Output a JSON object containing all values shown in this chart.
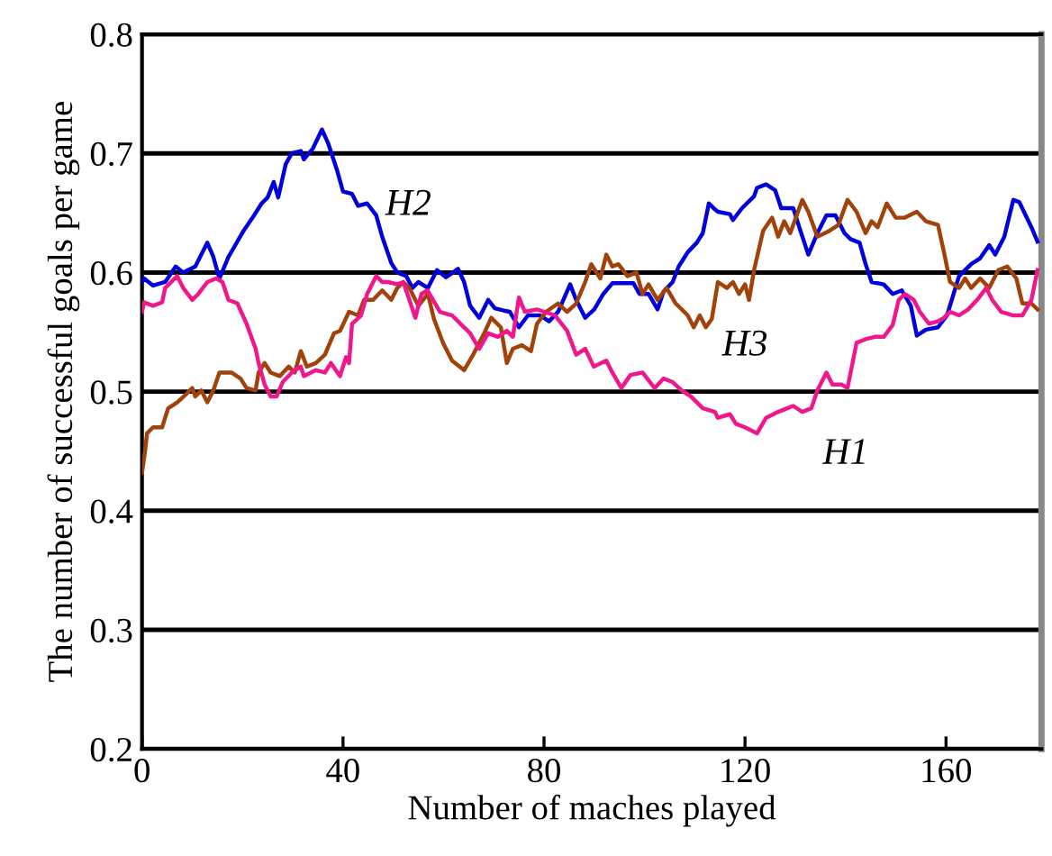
{
  "chart_data": {
    "type": "line",
    "xlabel": "Number of maches played",
    "ylabel": "The number of successful goals per game",
    "xlim": [
      0,
      179
    ],
    "ylim": [
      0.2,
      0.8
    ],
    "xticks": [
      0,
      40,
      80,
      120,
      160
    ],
    "yticks": [
      0.2,
      0.3,
      0.4,
      0.5,
      0.6,
      0.7,
      0.8
    ],
    "grid": "y",
    "legend": false,
    "marker": "none",
    "line_style": "solid",
    "series": [
      {
        "name": "H2",
        "color": "#0000dd",
        "x": [
          0,
          0.4,
          2.2,
          4.6,
          6.7,
          8.2,
          10.6,
          13.0,
          14.2,
          15.4,
          17.2,
          20.2,
          22.0,
          23.8,
          25.0,
          26.2,
          27.1,
          28.6,
          29.8,
          31.6,
          32.2,
          34.0,
          35.8,
          37.0,
          38.8,
          40.0,
          41.8,
          43.0,
          44.8,
          46.6,
          47.8,
          49.6,
          50.8,
          52.6,
          53.8,
          55.0,
          56.9,
          58.7,
          60.5,
          62.9,
          64.1,
          65.3,
          67.1,
          68.9,
          70.2,
          72.0,
          73.2,
          75.0,
          76.8,
          79.2,
          81.0,
          82.8,
          85.2,
          86.4,
          88.2,
          90.0,
          91.8,
          93.6,
          97.8,
          99.0,
          100.8,
          102.6,
          103.8,
          105.6,
          106.8,
          108.6,
          110.4,
          111.6,
          112.8,
          114.0,
          114.6,
          117.0,
          117.6,
          119.4,
          121.8,
          122.4,
          124.2,
          126.0,
          127.2,
          129.6,
          130.8,
          132.6,
          134.4,
          136.2,
          138.0,
          139.8,
          141.0,
          142.8,
          144.0,
          145.2,
          147.6,
          149.4,
          151.2,
          153.0,
          154.2,
          156.0,
          158.4,
          160.2,
          162.6,
          165.0,
          166.8,
          168.6,
          169.8,
          171.6,
          173.4,
          174.6,
          177.0,
          178.2
        ],
        "values": [
          0.592,
          0.595,
          0.589,
          0.592,
          0.605,
          0.6,
          0.605,
          0.625,
          0.613,
          0.595,
          0.613,
          0.635,
          0.646,
          0.658,
          0.663,
          0.676,
          0.663,
          0.691,
          0.7,
          0.702,
          0.695,
          0.704,
          0.72,
          0.709,
          0.686,
          0.668,
          0.666,
          0.656,
          0.658,
          0.648,
          0.63,
          0.608,
          0.6,
          0.597,
          0.587,
          0.592,
          0.587,
          0.602,
          0.596,
          0.603,
          0.592,
          0.572,
          0.562,
          0.577,
          0.57,
          0.568,
          0.567,
          0.554,
          0.564,
          0.564,
          0.559,
          0.567,
          0.59,
          0.577,
          0.562,
          0.569,
          0.582,
          0.591,
          0.591,
          0.582,
          0.582,
          0.569,
          0.584,
          0.592,
          0.605,
          0.617,
          0.625,
          0.633,
          0.658,
          0.653,
          0.651,
          0.649,
          0.644,
          0.654,
          0.664,
          0.671,
          0.674,
          0.669,
          0.654,
          0.654,
          0.638,
          0.615,
          0.633,
          0.648,
          0.648,
          0.633,
          0.628,
          0.625,
          0.607,
          0.592,
          0.59,
          0.582,
          0.585,
          0.572,
          0.547,
          0.552,
          0.554,
          0.564,
          0.597,
          0.607,
          0.612,
          0.623,
          0.615,
          0.63,
          0.661,
          0.659,
          0.638,
          0.626
        ]
      },
      {
        "name": "H3",
        "color": "#a0420a",
        "x": [
          0,
          0.6,
          1.0,
          2.2,
          4.0,
          5.2,
          7.0,
          8.8,
          10.0,
          10.6,
          11.8,
          13.0,
          14.2,
          15.4,
          17.8,
          19.6,
          20.8,
          22.6,
          23.2,
          24.4,
          25.6,
          27.4,
          29.2,
          30.4,
          31.6,
          32.8,
          34.6,
          36.4,
          38.2,
          39.4,
          41.2,
          43.0,
          44.2,
          46.0,
          47.8,
          49.6,
          50.8,
          52.0,
          53.2,
          55.0,
          56.9,
          58.1,
          59.9,
          61.7,
          64.1,
          65.9,
          68.1,
          69.5,
          71.4,
          72.6,
          73.8,
          75.6,
          77.4,
          78.6,
          80.4,
          82.8,
          84.6,
          86.4,
          88.2,
          89.4,
          91.2,
          92.4,
          93.6,
          94.8,
          96.6,
          98.4,
          99.6,
          100.8,
          102.6,
          104.4,
          106.2,
          108.6,
          109.8,
          111.0,
          112.2,
          113.4,
          114.6,
          116.4,
          117.6,
          118.8,
          120.0,
          120.8,
          121.8,
          123.6,
          125.4,
          126.6,
          127.8,
          129.0,
          131.4,
          132.6,
          134.4,
          136.8,
          138.6,
          140.4,
          142.2,
          144.0,
          145.2,
          146.4,
          148.2,
          150.0,
          151.8,
          154.2,
          156.0,
          158.4,
          159.6,
          160.8,
          162.6,
          163.8,
          165.0,
          166.8,
          168.6,
          170.4,
          172.2,
          174.0,
          175.2,
          177.0,
          178.2
        ],
        "values": [
          0.432,
          0.45,
          0.465,
          0.47,
          0.47,
          0.486,
          0.491,
          0.498,
          0.503,
          0.496,
          0.501,
          0.491,
          0.501,
          0.516,
          0.516,
          0.511,
          0.503,
          0.501,
          0.516,
          0.524,
          0.516,
          0.513,
          0.521,
          0.516,
          0.534,
          0.521,
          0.524,
          0.531,
          0.549,
          0.551,
          0.567,
          0.564,
          0.577,
          0.577,
          0.585,
          0.577,
          0.587,
          0.592,
          0.587,
          0.572,
          0.582,
          0.561,
          0.541,
          0.526,
          0.518,
          0.531,
          0.549,
          0.562,
          0.554,
          0.524,
          0.536,
          0.539,
          0.534,
          0.557,
          0.567,
          0.574,
          0.567,
          0.574,
          0.592,
          0.607,
          0.595,
          0.615,
          0.605,
          0.607,
          0.597,
          0.6,
          0.582,
          0.59,
          0.577,
          0.587,
          0.574,
          0.564,
          0.554,
          0.564,
          0.554,
          0.561,
          0.592,
          0.587,
          0.592,
          0.582,
          0.59,
          0.577,
          0.602,
          0.635,
          0.646,
          0.63,
          0.643,
          0.633,
          0.661,
          0.651,
          0.63,
          0.635,
          0.64,
          0.661,
          0.651,
          0.633,
          0.643,
          0.638,
          0.658,
          0.646,
          0.646,
          0.651,
          0.643,
          0.64,
          0.617,
          0.592,
          0.587,
          0.595,
          0.587,
          0.595,
          0.587,
          0.602,
          0.605,
          0.595,
          0.574,
          0.574,
          0.569
        ]
      },
      {
        "name": "H1",
        "color": "#f0168c",
        "x": [
          0,
          0.4,
          2.2,
          4.0,
          4.6,
          7.0,
          8.2,
          10.0,
          11.2,
          13.0,
          14.8,
          16.0,
          17.2,
          19.0,
          20.8,
          22.6,
          23.2,
          24.4,
          25.6,
          26.8,
          28.0,
          29.8,
          31.6,
          32.2,
          34.6,
          36.4,
          37.6,
          39.4,
          40.6,
          41.2,
          41.8,
          43.6,
          44.8,
          46.6,
          47.8,
          49.0,
          50.8,
          52.0,
          53.2,
          54.4,
          55.6,
          56.8,
          59.3,
          61.7,
          63.6,
          65.3,
          67.1,
          68.9,
          70.8,
          72.6,
          73.8,
          75.0,
          76.2,
          78.6,
          82.2,
          84.6,
          86.4,
          88.2,
          89.9,
          92.4,
          93.6,
          95.4,
          97.2,
          99.6,
          102.0,
          103.8,
          105.6,
          107.4,
          109.2,
          111.6,
          114.0,
          114.6,
          117.0,
          118.2,
          120.0,
          122.4,
          124.2,
          126.6,
          128.4,
          129.6,
          131.4,
          133.2,
          134.4,
          136.2,
          137.4,
          139.2,
          140.4,
          142.2,
          144.0,
          145.8,
          147.6,
          149.4,
          150.6,
          151.8,
          153.6,
          154.8,
          156.6,
          158.4,
          159.6,
          160.8,
          162.6,
          164.4,
          166.2,
          168.0,
          169.2,
          171.0,
          173.4,
          175.2,
          177.0,
          178.2
        ],
        "values": [
          0.567,
          0.575,
          0.572,
          0.575,
          0.587,
          0.597,
          0.587,
          0.577,
          0.582,
          0.592,
          0.595,
          0.592,
          0.577,
          0.574,
          0.557,
          0.536,
          0.524,
          0.506,
          0.496,
          0.496,
          0.508,
          0.516,
          0.521,
          0.513,
          0.518,
          0.516,
          0.524,
          0.513,
          0.529,
          0.524,
          0.557,
          0.564,
          0.582,
          0.597,
          0.592,
          0.592,
          0.59,
          0.592,
          0.577,
          0.562,
          0.582,
          0.585,
          0.567,
          0.564,
          0.556,
          0.549,
          0.536,
          0.549,
          0.546,
          0.551,
          0.546,
          0.579,
          0.567,
          0.569,
          0.564,
          0.551,
          0.531,
          0.536,
          0.521,
          0.526,
          0.516,
          0.503,
          0.514,
          0.516,
          0.503,
          0.511,
          0.508,
          0.501,
          0.496,
          0.486,
          0.483,
          0.478,
          0.481,
          0.473,
          0.47,
          0.465,
          0.478,
          0.483,
          0.486,
          0.488,
          0.483,
          0.486,
          0.501,
          0.516,
          0.506,
          0.506,
          0.503,
          0.541,
          0.544,
          0.546,
          0.546,
          0.556,
          0.577,
          0.582,
          0.577,
          0.567,
          0.557,
          0.559,
          0.562,
          0.567,
          0.564,
          0.569,
          0.577,
          0.587,
          0.577,
          0.567,
          0.564,
          0.564,
          0.577,
          0.602
        ]
      }
    ]
  }
}
